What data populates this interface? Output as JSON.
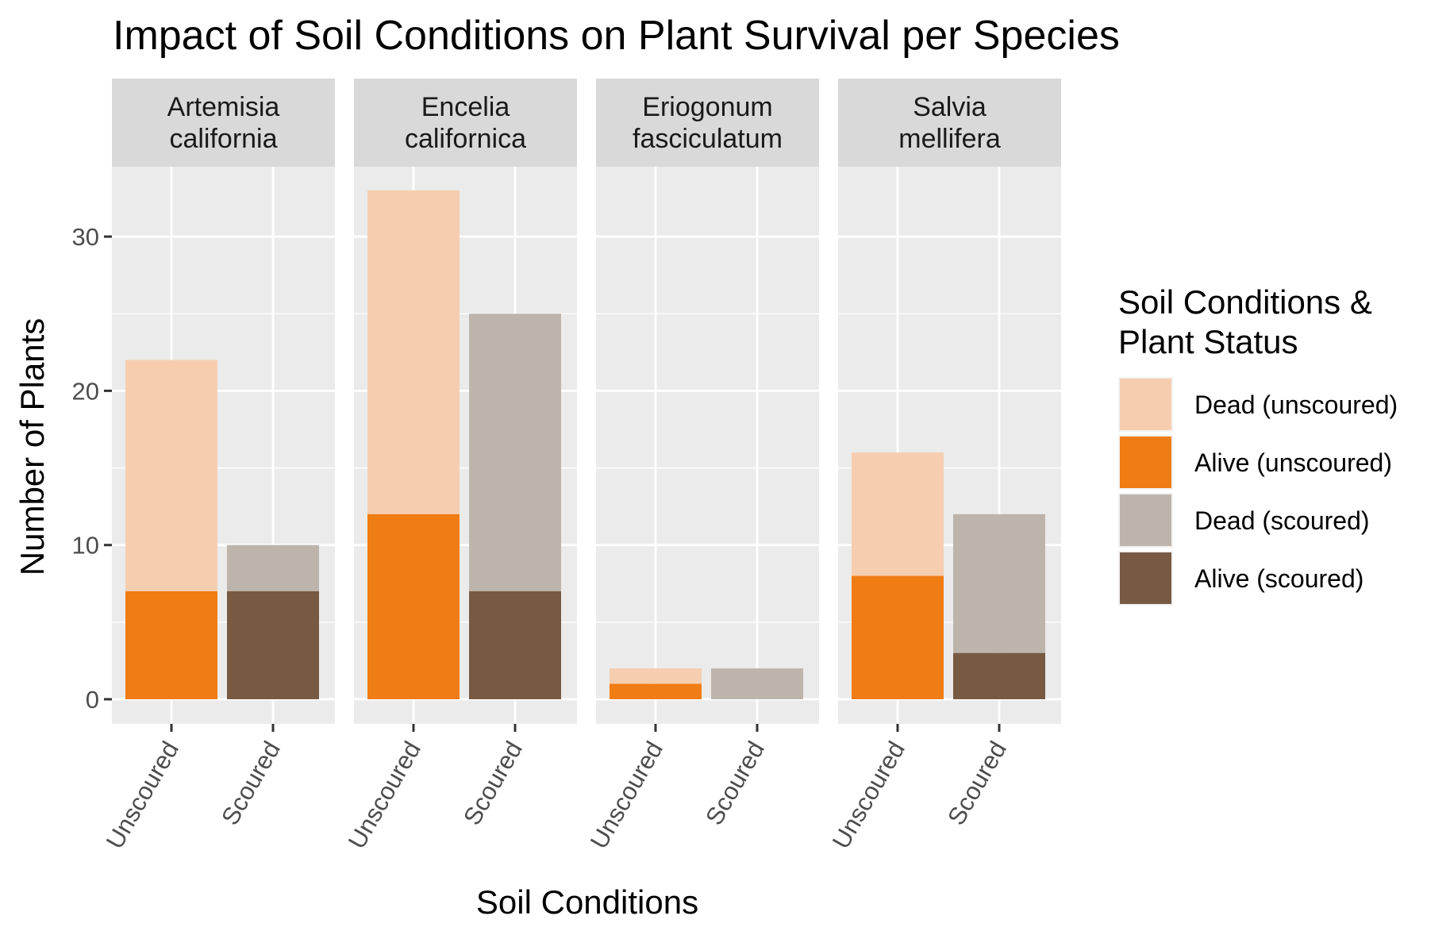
{
  "chart_data": {
    "type": "bar",
    "stacked": true,
    "faceted": true,
    "title": "Impact of Soil Conditions on Plant Survival per Species",
    "xlabel": "Soil Conditions",
    "ylabel": "Number of Plants",
    "ylim": [
      0,
      35
    ],
    "yticks": [
      0,
      10,
      20,
      30
    ],
    "categories": [
      "Unscoured",
      "Scoured"
    ],
    "grid": true,
    "legend": {
      "title_lines": [
        "Soil Conditions &",
        "Plant Status"
      ],
      "placement": "right",
      "entries": [
        {
          "key": "dead_unscoured",
          "label": "Dead (unscoured)",
          "color": "#F6CEAF"
        },
        {
          "key": "alive_unscoured",
          "label": "Alive (unscoured)",
          "color": "#F07C14"
        },
        {
          "key": "dead_scoured",
          "label": "Dead (scoured)",
          "color": "#BDB4AB"
        },
        {
          "key": "alive_scoured",
          "label": "Alive (scoured)",
          "color": "#785A43"
        }
      ]
    },
    "facets": [
      {
        "name_lines": [
          "Artemisia",
          "california"
        ],
        "bars": [
          {
            "category": "Unscoured",
            "alive_key": "alive_unscoured",
            "dead_key": "dead_unscoured",
            "alive": 7,
            "total": 22
          },
          {
            "category": "Scoured",
            "alive_key": "alive_scoured",
            "dead_key": "dead_scoured",
            "alive": 7,
            "total": 10
          }
        ]
      },
      {
        "name_lines": [
          "Encelia",
          "californica"
        ],
        "bars": [
          {
            "category": "Unscoured",
            "alive_key": "alive_unscoured",
            "dead_key": "dead_unscoured",
            "alive": 12,
            "total": 33
          },
          {
            "category": "Scoured",
            "alive_key": "alive_scoured",
            "dead_key": "dead_scoured",
            "alive": 7,
            "total": 25
          }
        ]
      },
      {
        "name_lines": [
          "Eriogonum",
          "fasciculatum"
        ],
        "bars": [
          {
            "category": "Unscoured",
            "alive_key": "alive_unscoured",
            "dead_key": "dead_unscoured",
            "alive": 1,
            "total": 2
          },
          {
            "category": "Scoured",
            "alive_key": "alive_scoured",
            "dead_key": "dead_scoured",
            "alive": 0,
            "total": 2
          }
        ]
      },
      {
        "name_lines": [
          "Salvia",
          "mellifera"
        ],
        "bars": [
          {
            "category": "Unscoured",
            "alive_key": "alive_unscoured",
            "dead_key": "dead_unscoured",
            "alive": 8,
            "total": 16
          },
          {
            "category": "Scoured",
            "alive_key": "alive_scoured",
            "dead_key": "dead_scoured",
            "alive": 3,
            "total": 12
          }
        ]
      }
    ],
    "colors": {
      "panel_bg": "#EBEBEB",
      "strip_bg": "#D9D9D9",
      "grid": "#FFFFFF",
      "tick": "#333333"
    }
  }
}
